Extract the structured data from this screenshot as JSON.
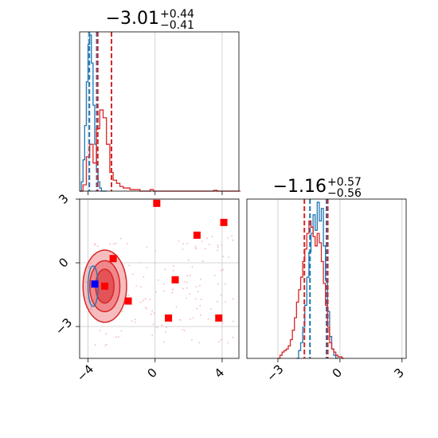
{
  "chart_data": [
    {
      "type": "step-histogram",
      "panel": "param1-marginal",
      "title": {
        "main": "−3.01",
        "sup": "+0.44",
        "sub": "−0.41"
      },
      "x_range": [
        -4.5,
        5.0
      ],
      "y_range": [
        0,
        1.02
      ],
      "grid": true,
      "ticks": {
        "x": [
          -4,
          0,
          4
        ]
      },
      "series": [
        {
          "color": "#1f77b4",
          "bins_x0": -4.5,
          "bin_width": 0.1,
          "values": [
            0,
            0.06,
            0.2,
            0.42,
            0.7,
            0.94,
            1.0,
            0.82,
            0.55,
            0.3,
            0.14,
            0.06,
            0.02,
            0,
            0,
            0
          ],
          "quantile_lines": [
            -3.92,
            -3.48
          ]
        },
        {
          "color": "#d62728",
          "bins_x0": -4.5,
          "bin_width": 0.2,
          "values": [
            0,
            0.04,
            0.22,
            0.3,
            0.18,
            0.4,
            0.52,
            0.47,
            0.3,
            0.12,
            0.07,
            0.05,
            0.03,
            0.02,
            0.02,
            0.01,
            0.01,
            0.01,
            0,
            0,
            0,
            0.01,
            0,
            0,
            0,
            0,
            0,
            0,
            0,
            0,
            0,
            0,
            0,
            0,
            0,
            0,
            0,
            0,
            0,
            0,
            0.005,
            0,
            0,
            0,
            0,
            0,
            0,
            0
          ],
          "quantile_lines": [
            -3.42,
            -2.6
          ]
        }
      ]
    },
    {
      "type": "scatter-contour",
      "panel": "joint-param1-param2",
      "x_range": [
        -4.5,
        5.0
      ],
      "y_range": [
        -4.5,
        3.0
      ],
      "grid": true,
      "ticks": {
        "x": [
          -4,
          0,
          4
        ],
        "y": [
          -3,
          0,
          3
        ]
      },
      "red_contours": {
        "center": [
          -3.0,
          -1.1
        ],
        "levels": [
          {
            "rx": 1.3,
            "ry": 1.7
          },
          {
            "rx": 0.9,
            "ry": 1.2
          },
          {
            "rx": 0.55,
            "ry": 0.8
          }
        ]
      },
      "blue_contour": {
        "center": [
          -3.7,
          -1.1
        ],
        "rx": 0.3,
        "ry": 0.95
      },
      "red_markers": [
        [
          -2.5,
          0.2
        ],
        [
          -3.0,
          -1.1
        ],
        [
          -1.6,
          -1.8
        ],
        [
          0.1,
          2.8
        ],
        [
          1.2,
          -0.8
        ],
        [
          2.5,
          1.3
        ],
        [
          4.1,
          1.9
        ],
        [
          0.8,
          -2.6
        ],
        [
          3.8,
          -2.6
        ]
      ],
      "blue_marker": [
        -3.6,
        -1.0
      ]
    },
    {
      "type": "step-histogram",
      "panel": "param2-marginal",
      "title": {
        "main": "−1.16",
        "sup": "+0.57",
        "sub": "−0.56"
      },
      "x_range": [
        -4.5,
        3.2
      ],
      "y_range": [
        0,
        1.02
      ],
      "grid": true,
      "ticks": {
        "x": [
          -3,
          0,
          3
        ]
      },
      "series": [
        {
          "color": "#1f77b4",
          "bins_x0": -2.1,
          "bin_width": 0.1,
          "values": [
            0,
            0.05,
            0.1,
            0.2,
            0.34,
            0.52,
            0.68,
            0.8,
            0.92,
            0.82,
            1.0,
            0.88,
            0.96,
            0.72,
            0.5,
            0.3,
            0.14,
            0.06,
            0.02,
            0
          ],
          "quantile_lines": [
            -1.45,
            -0.65
          ]
        },
        {
          "color": "#d62728",
          "bins_x0": -3.0,
          "bin_width": 0.1,
          "values": [
            0,
            0.02,
            0.04,
            0.05,
            0.06,
            0.08,
            0.12,
            0.18,
            0.26,
            0.36,
            0.44,
            0.52,
            0.62,
            0.7,
            0.8,
            0.88,
            0.84,
            0.78,
            0.72,
            0.8,
            0.74,
            0.62,
            0.48,
            0.34,
            0.2,
            0.1,
            0.06,
            0.04,
            0.02,
            0.01,
            0.01,
            0
          ],
          "quantile_lines": [
            -1.72,
            -0.59
          ]
        }
      ]
    }
  ]
}
